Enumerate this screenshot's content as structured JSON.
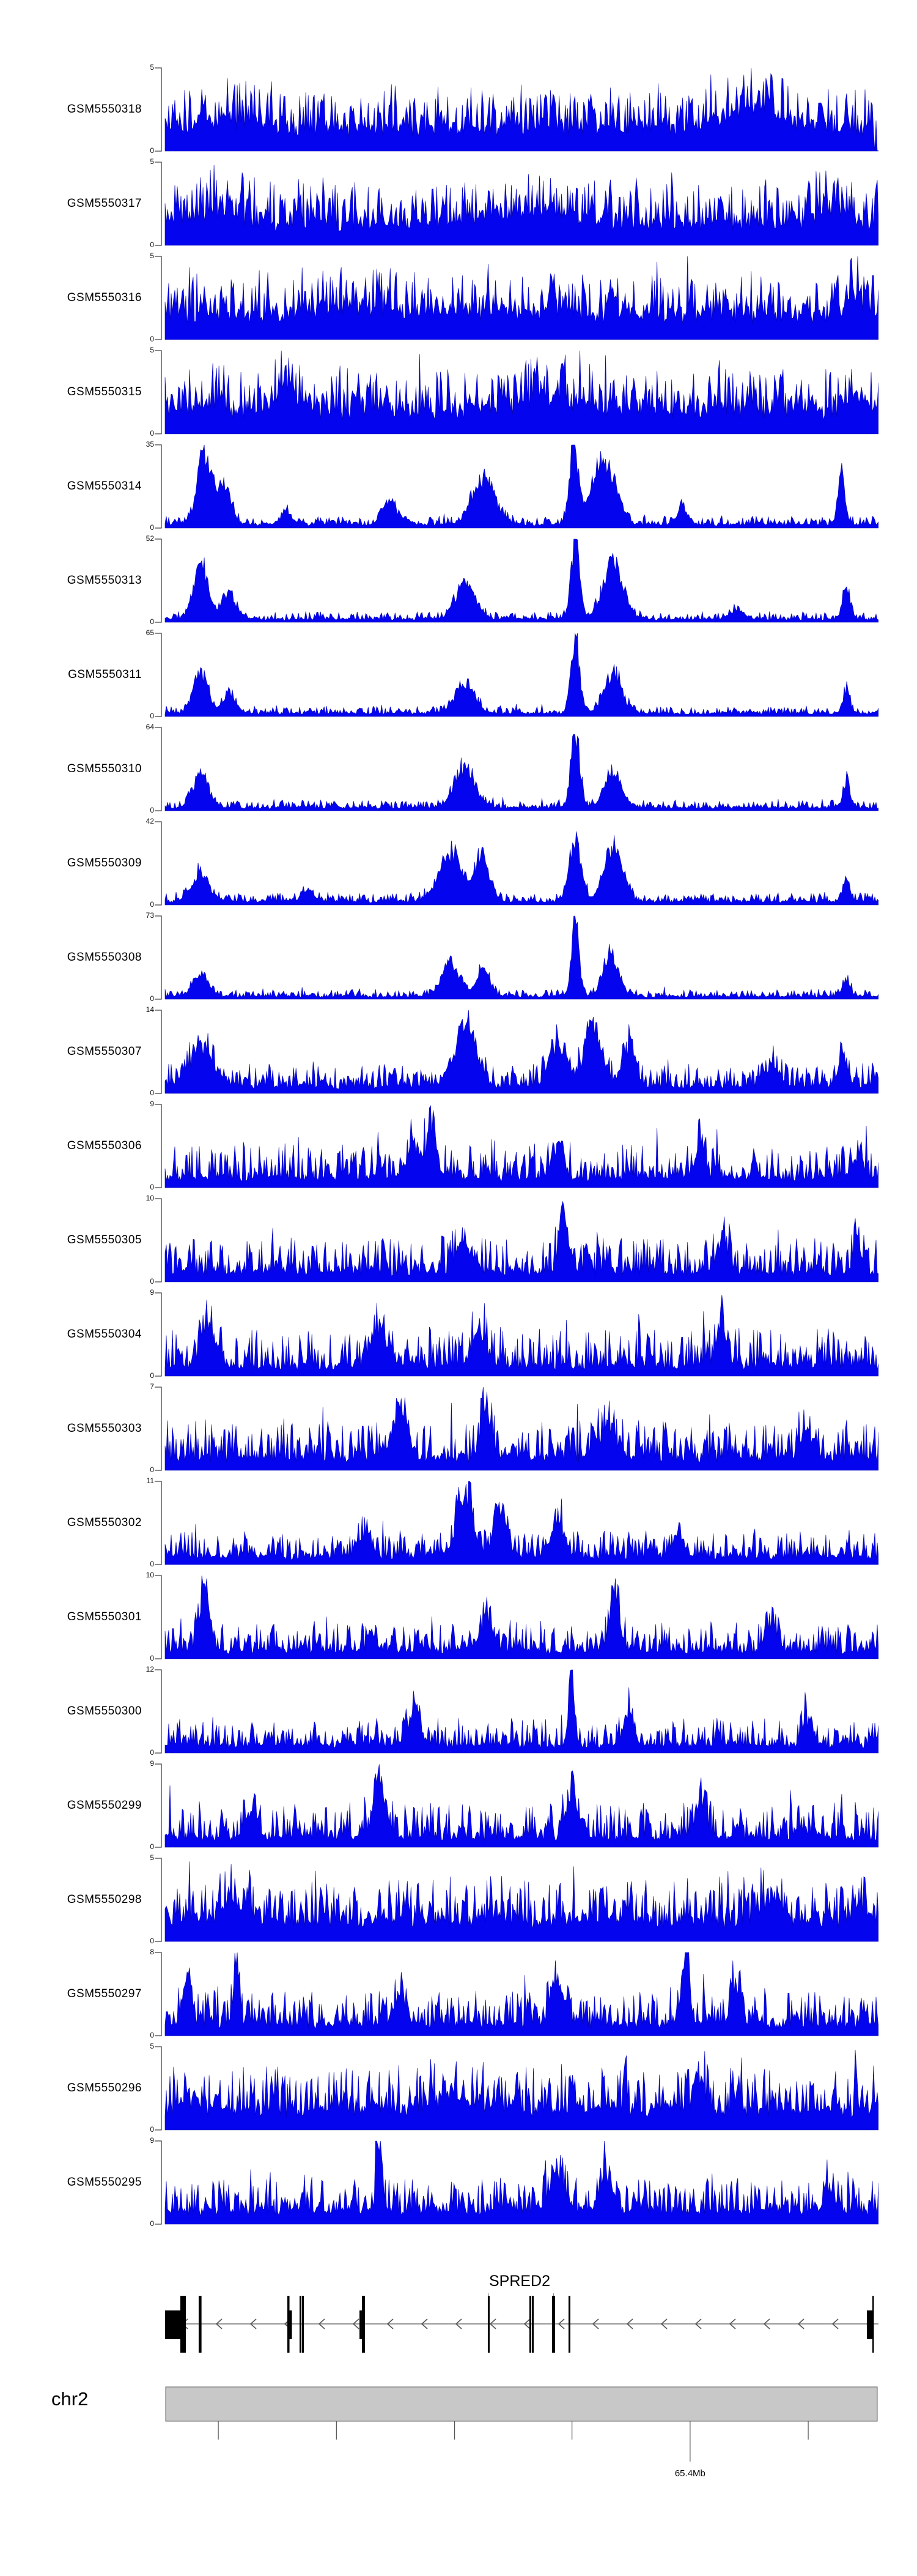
{
  "chart_data": {
    "type": "area",
    "title": "",
    "description": "Genome browser read-coverage tracks (blue area plots) for 23 GEO samples over the SPRED2 locus on chr2",
    "signal_color": "#0404ee",
    "signal_edge_color": "#0000b0",
    "axis_color": "#444444",
    "legend_position": "none",
    "grid": false,
    "tracks": [
      {
        "label": "GSM5550318",
        "ymax": 5,
        "ymin": 0,
        "base": 0.32,
        "noise": 0.52,
        "peaks": [
          [
            0.82,
            0.3,
            0.035
          ],
          [
            0.1,
            0.1,
            0.04
          ],
          [
            0.998,
            -0.55,
            0.003
          ]
        ]
      },
      {
        "label": "GSM5550317",
        "ymax": 5,
        "ymin": 0,
        "base": 0.32,
        "noise": 0.52,
        "peaks": [
          [
            0.07,
            0.15,
            0.03
          ],
          [
            0.5,
            0.12,
            0.06
          ],
          [
            0.93,
            0.15,
            0.02
          ]
        ]
      },
      {
        "label": "GSM5550316",
        "ymax": 5,
        "ymin": 0,
        "base": 0.36,
        "noise": 0.52,
        "peaks": [
          [
            0.25,
            0.1,
            0.05
          ],
          [
            0.97,
            0.25,
            0.015
          ]
        ]
      },
      {
        "label": "GSM5550315",
        "ymax": 5,
        "ymin": 0,
        "base": 0.33,
        "noise": 0.52,
        "peaks": [
          [
            0.17,
            0.3,
            0.012
          ],
          [
            0.55,
            0.15,
            0.04
          ],
          [
            0.97,
            0.2,
            0.01
          ]
        ]
      },
      {
        "label": "GSM5550314",
        "ymax": 35,
        "ymin": 0,
        "base": 0.05,
        "noise": 0.1,
        "peaks": [
          [
            0.055,
            0.88,
            0.01
          ],
          [
            0.082,
            0.48,
            0.01
          ],
          [
            0.17,
            0.15,
            0.008
          ],
          [
            0.315,
            0.3,
            0.01
          ],
          [
            0.447,
            0.58,
            0.016
          ],
          [
            0.573,
            1.02,
            0.006
          ],
          [
            0.615,
            0.88,
            0.016
          ],
          [
            0.725,
            0.22,
            0.007
          ],
          [
            0.948,
            0.68,
            0.005
          ]
        ]
      },
      {
        "label": "GSM5550313",
        "ymax": 52,
        "ymin": 0,
        "base": 0.045,
        "noise": 0.09,
        "peaks": [
          [
            0.05,
            0.72,
            0.01
          ],
          [
            0.09,
            0.33,
            0.01
          ],
          [
            0.42,
            0.44,
            0.014
          ],
          [
            0.575,
            1.02,
            0.006
          ],
          [
            0.628,
            0.72,
            0.014
          ],
          [
            0.8,
            0.12,
            0.008
          ],
          [
            0.955,
            0.42,
            0.005
          ]
        ]
      },
      {
        "label": "GSM5550311",
        "ymax": 65,
        "ymin": 0,
        "base": 0.045,
        "noise": 0.09,
        "peaks": [
          [
            0.05,
            0.52,
            0.01
          ],
          [
            0.09,
            0.26,
            0.009
          ],
          [
            0.42,
            0.38,
            0.014
          ],
          [
            0.575,
            0.95,
            0.006
          ],
          [
            0.628,
            0.52,
            0.012
          ],
          [
            0.955,
            0.32,
            0.005
          ]
        ]
      },
      {
        "label": "GSM5550310",
        "ymax": 64,
        "ymin": 0,
        "base": 0.045,
        "noise": 0.09,
        "peaks": [
          [
            0.05,
            0.42,
            0.011
          ],
          [
            0.42,
            0.52,
            0.014
          ],
          [
            0.575,
            1.0,
            0.006
          ],
          [
            0.628,
            0.44,
            0.012
          ],
          [
            0.955,
            0.36,
            0.005
          ]
        ]
      },
      {
        "label": "GSM5550309",
        "ymax": 42,
        "ymin": 0,
        "base": 0.05,
        "noise": 0.11,
        "peaks": [
          [
            0.05,
            0.34,
            0.012
          ],
          [
            0.2,
            0.14,
            0.008
          ],
          [
            0.4,
            0.62,
            0.016
          ],
          [
            0.445,
            0.56,
            0.01
          ],
          [
            0.575,
            0.82,
            0.008
          ],
          [
            0.628,
            0.68,
            0.013
          ],
          [
            0.955,
            0.28,
            0.005
          ]
        ]
      },
      {
        "label": "GSM5550308",
        "ymax": 73,
        "ymin": 0,
        "base": 0.04,
        "noise": 0.09,
        "peaks": [
          [
            0.05,
            0.28,
            0.011
          ],
          [
            0.4,
            0.42,
            0.013
          ],
          [
            0.445,
            0.36,
            0.009
          ],
          [
            0.575,
            1.02,
            0.005
          ],
          [
            0.625,
            0.52,
            0.011
          ],
          [
            0.955,
            0.22,
            0.005
          ]
        ]
      },
      {
        "label": "GSM5550307",
        "ymax": 14,
        "ymin": 0,
        "base": 0.1,
        "noise": 0.28,
        "peaks": [
          [
            0.05,
            0.45,
            0.018
          ],
          [
            0.42,
            0.7,
            0.016
          ],
          [
            0.55,
            0.55,
            0.012
          ],
          [
            0.6,
            0.8,
            0.012
          ],
          [
            0.65,
            0.5,
            0.009
          ],
          [
            0.85,
            0.25,
            0.009
          ],
          [
            0.95,
            0.4,
            0.007
          ]
        ]
      },
      {
        "label": "GSM5550306",
        "ymax": 9,
        "ymin": 0,
        "base": 0.14,
        "noise": 0.42,
        "peaks": [
          [
            0.35,
            0.45,
            0.009
          ],
          [
            0.375,
            0.55,
            0.007
          ],
          [
            0.55,
            0.35,
            0.009
          ],
          [
            0.75,
            0.4,
            0.007
          ],
          [
            0.97,
            0.3,
            0.006
          ]
        ]
      },
      {
        "label": "GSM5550305",
        "ymax": 10,
        "ymin": 0,
        "base": 0.14,
        "noise": 0.42,
        "peaks": [
          [
            0.42,
            0.4,
            0.009
          ],
          [
            0.56,
            0.6,
            0.007
          ],
          [
            0.78,
            0.35,
            0.008
          ],
          [
            0.97,
            0.45,
            0.005
          ]
        ]
      },
      {
        "label": "GSM5550304",
        "ymax": 9,
        "ymin": 0,
        "base": 0.14,
        "noise": 0.46,
        "peaks": [
          [
            0.06,
            0.55,
            0.009
          ],
          [
            0.3,
            0.5,
            0.011
          ],
          [
            0.44,
            0.45,
            0.009
          ],
          [
            0.78,
            0.5,
            0.007
          ]
        ]
      },
      {
        "label": "GSM5550303",
        "ymax": 7,
        "ymin": 0,
        "base": 0.18,
        "noise": 0.46,
        "peaks": [
          [
            0.33,
            0.55,
            0.011
          ],
          [
            0.45,
            0.6,
            0.007
          ],
          [
            0.62,
            0.45,
            0.009
          ],
          [
            0.9,
            0.3,
            0.008
          ]
        ]
      },
      {
        "label": "GSM5550302",
        "ymax": 11,
        "ymin": 0,
        "base": 0.11,
        "noise": 0.33,
        "peaks": [
          [
            0.42,
            0.8,
            0.011
          ],
          [
            0.47,
            0.55,
            0.009
          ],
          [
            0.55,
            0.45,
            0.009
          ],
          [
            0.28,
            0.28,
            0.009
          ],
          [
            0.72,
            0.25,
            0.008
          ]
        ]
      },
      {
        "label": "GSM5550301",
        "ymax": 10,
        "ymin": 0,
        "base": 0.11,
        "noise": 0.36,
        "peaks": [
          [
            0.055,
            0.75,
            0.007
          ],
          [
            0.45,
            0.35,
            0.009
          ],
          [
            0.63,
            0.7,
            0.007
          ],
          [
            0.85,
            0.3,
            0.009
          ]
        ]
      },
      {
        "label": "GSM5550300",
        "ymax": 12,
        "ymin": 0,
        "base": 0.11,
        "noise": 0.32,
        "peaks": [
          [
            0.57,
            1.0,
            0.004
          ],
          [
            0.35,
            0.35,
            0.009
          ],
          [
            0.65,
            0.4,
            0.007
          ],
          [
            0.9,
            0.28,
            0.007
          ]
        ]
      },
      {
        "label": "GSM5550299",
        "ymax": 9,
        "ymin": 0,
        "base": 0.14,
        "noise": 0.42,
        "peaks": [
          [
            0.3,
            0.55,
            0.009
          ],
          [
            0.57,
            0.6,
            0.007
          ],
          [
            0.75,
            0.45,
            0.007
          ],
          [
            0.12,
            0.3,
            0.008
          ]
        ]
      },
      {
        "label": "GSM5550298",
        "ymax": 5,
        "ymin": 0,
        "base": 0.3,
        "noise": 0.5,
        "peaks": [
          [
            0.1,
            0.25,
            0.018
          ],
          [
            0.85,
            0.3,
            0.013
          ],
          [
            0.97,
            0.25,
            0.008
          ]
        ]
      },
      {
        "label": "GSM5550297",
        "ymax": 8,
        "ymin": 0,
        "base": 0.16,
        "noise": 0.42,
        "peaks": [
          [
            0.03,
            0.65,
            0.005
          ],
          [
            0.1,
            0.78,
            0.004
          ],
          [
            0.55,
            0.55,
            0.009
          ],
          [
            0.73,
            0.85,
            0.005
          ],
          [
            0.8,
            0.45,
            0.007
          ],
          [
            0.33,
            0.35,
            0.008
          ]
        ]
      },
      {
        "label": "GSM5550296",
        "ymax": 5,
        "ymin": 0,
        "base": 0.3,
        "noise": 0.53,
        "peaks": [
          [
            0.75,
            0.35,
            0.009
          ],
          [
            0.4,
            0.2,
            0.02
          ]
        ]
      },
      {
        "label": "GSM5550295",
        "ymax": 9,
        "ymin": 0,
        "base": 0.18,
        "noise": 0.42,
        "peaks": [
          [
            0.3,
            0.78,
            0.004
          ],
          [
            0.55,
            0.5,
            0.009
          ],
          [
            0.62,
            0.45,
            0.009
          ],
          [
            0.93,
            0.3,
            0.007
          ]
        ]
      }
    ],
    "gene_track": {
      "gene": "SPRED2",
      "strand": "-",
      "exons": [
        {
          "f": 0.0,
          "w": 0.0214,
          "t": "utr"
        },
        {
          "f": 0.0214,
          "w": 0.0077,
          "t": "cds"
        },
        {
          "f": 0.0471,
          "w": 0.004,
          "t": "cds"
        },
        {
          "f": 0.1714,
          "w": 0.003,
          "t": "cds"
        },
        {
          "f": 0.1744,
          "w": 0.0034,
          "t": "utr"
        },
        {
          "f": 0.1885,
          "w": 0.0026,
          "t": "cds"
        },
        {
          "f": 0.1919,
          "w": 0.0026,
          "t": "cds"
        },
        {
          "f": 0.2725,
          "w": 0.0034,
          "t": "utr"
        },
        {
          "f": 0.2759,
          "w": 0.0043,
          "t": "cds"
        },
        {
          "f": 0.4524,
          "w": 0.0026,
          "t": "cds",
          "guide": true
        },
        {
          "f": 0.5107,
          "w": 0.0026,
          "t": "cds"
        },
        {
          "f": 0.5141,
          "w": 0.0026,
          "t": "cds"
        },
        {
          "f": 0.5424,
          "w": 0.0043,
          "t": "cds",
          "guide": true
        },
        {
          "f": 0.5655,
          "w": 0.0026,
          "t": "cds"
        },
        {
          "f": 0.9837,
          "w": 0.0086,
          "t": "utr"
        },
        {
          "f": 0.9914,
          "w": 0.0017,
          "t": "cds"
        }
      ]
    },
    "chromosome_track": {
      "label": "chr2",
      "bar_color": "#c8c8c8",
      "ticks": [
        {
          "f": 0.074
        },
        {
          "f": 0.24
        },
        {
          "f": 0.406
        },
        {
          "f": 0.571
        },
        {
          "f": 0.737,
          "long": true,
          "label": "65.4Mb"
        },
        {
          "f": 0.903
        }
      ]
    }
  }
}
